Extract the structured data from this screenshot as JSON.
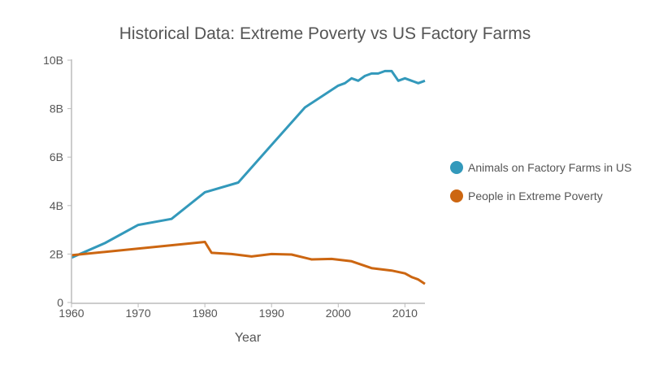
{
  "chart_data": {
    "type": "line",
    "title": "Historical Data: Extreme Poverty vs US Factory Farms",
    "xlabel": "Year",
    "ylabel": "",
    "xlim": [
      1960,
      2013
    ],
    "ylim": [
      0,
      10000000000
    ],
    "x_ticks": [
      1960,
      1970,
      1980,
      1990,
      2000,
      2010
    ],
    "y_ticks": [
      0,
      2000000000,
      4000000000,
      6000000000,
      8000000000,
      10000000000
    ],
    "y_tick_labels": [
      "0",
      "2B",
      "4B",
      "6B",
      "8B",
      "10B"
    ],
    "legend_position": "right",
    "series": [
      {
        "name": "Animals on Factory Farms in US",
        "color": "#3399bb",
        "x": [
          1960,
          1965,
          1970,
          1975,
          1980,
          1985,
          1990,
          1995,
          2000,
          2001,
          2002,
          2003,
          2004,
          2005,
          2006,
          2007,
          2008,
          2009,
          2010,
          2011,
          2012,
          2013
        ],
        "values": [
          1850000000.0,
          2450000000.0,
          3200000000.0,
          3450000000.0,
          4550000000.0,
          4950000000.0,
          6500000000.0,
          8050000000.0,
          8950000000.0,
          9050000000.0,
          9250000000.0,
          9150000000.0,
          9350000000.0,
          9450000000.0,
          9450000000.0,
          9550000000.0,
          9550000000.0,
          9150000000.0,
          9250000000.0,
          9150000000.0,
          9050000000.0,
          9150000000.0
        ]
      },
      {
        "name": "People in Extreme Poverty",
        "color": "#cc6611",
        "x": [
          1960,
          1980,
          1981,
          1984,
          1987,
          1990,
          1993,
          1996,
          1999,
          2002,
          2005,
          2008,
          2010,
          2011,
          2012,
          2013
        ],
        "values": [
          1950000000.0,
          2500000000.0,
          2050000000.0,
          2000000000.0,
          1900000000.0,
          2000000000.0,
          1980000000.0,
          1780000000.0,
          1800000000.0,
          1700000000.0,
          1420000000.0,
          1320000000.0,
          1200000000.0,
          1050000000.0,
          950000000.0,
          770000000.0
        ]
      }
    ]
  }
}
